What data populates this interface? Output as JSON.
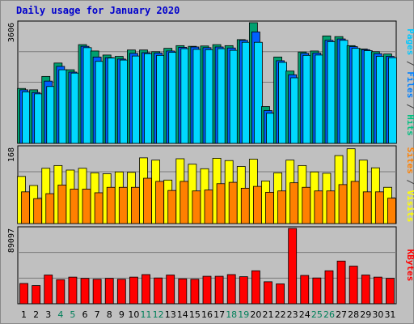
{
  "chart_data": {
    "type": "bar",
    "title": "Daily usage for January 2020",
    "days": [
      "1",
      "2",
      "3",
      "4",
      "5",
      "6",
      "7",
      "8",
      "9",
      "10",
      "11",
      "12",
      "13",
      "14",
      "15",
      "16",
      "17",
      "18",
      "19",
      "20",
      "21",
      "22",
      "23",
      "24",
      "25",
      "26",
      "27",
      "28",
      "29",
      "30",
      "31"
    ],
    "weekend_days": [
      "4",
      "5",
      "11",
      "12",
      "18",
      "19",
      "25",
      "26"
    ],
    "panels": [
      {
        "id": "top",
        "max_label": "3606",
        "max": 3606,
        "label_parts": [
          {
            "text": "Pages",
            "color": "#00c8ff"
          },
          {
            "text": " / ",
            "color": "#404040"
          },
          {
            "text": "Files",
            "color": "#0080ff"
          },
          {
            "text": " / ",
            "color": "#404040"
          },
          {
            "text": "Hits",
            "color": "#00c080"
          }
        ],
        "series": [
          {
            "name": "Hits",
            "color": "#00a070",
            "values": [
              1640,
              1600,
              2000,
              2400,
              2200,
              2950,
              2760,
              2640,
              2600,
              2790,
              2790,
              2740,
              2840,
              2920,
              2900,
              2910,
              2950,
              2920,
              3100,
              3606,
              1100,
              2580,
              2160,
              2730,
              2760,
              3210,
              3190,
              2920,
              2820,
              2740,
              2670
            ]
          },
          {
            "name": "Files",
            "color": "#0060ff",
            "values": [
              1600,
              1520,
              1860,
              2300,
              2130,
              2900,
              2580,
              2560,
              2520,
              2690,
              2710,
              2700,
              2760,
              2870,
              2880,
              2860,
              2880,
              2850,
              3080,
              3330,
              980,
              2470,
              2050,
              2690,
              2700,
              3080,
              3120,
              2890,
              2800,
              2680,
              2600
            ]
          },
          {
            "name": "Pages",
            "color": "#00d8ff",
            "values": [
              1540,
              1480,
              1700,
              2200,
              2100,
              2860,
              2450,
              2550,
              2490,
              2610,
              2680,
              2630,
              2720,
              2830,
              2810,
              2800,
              2830,
              2780,
              3020,
              3020,
              900,
              2420,
              1960,
              2630,
              2640,
              3040,
              3080,
              2840,
              2770,
              2600,
              2560
            ]
          }
        ]
      },
      {
        "id": "mid",
        "max_label": "168",
        "max": 168,
        "label_parts": [
          {
            "text": "Sites",
            "color": "#ff8000"
          },
          {
            "text": " / ",
            "color": "#404040"
          },
          {
            "text": "Visits",
            "color": "#ffff00"
          }
        ],
        "series": [
          {
            "name": "Visits",
            "color": "#ffff00",
            "values": [
              104,
              84,
              122,
              128,
              118,
              122,
              112,
              110,
              114,
              113,
              145,
              140,
              96,
              143,
              131,
              121,
              144,
              139,
              126,
              142,
              94,
              112,
              140,
              128,
              114,
              111,
              150,
              165,
              140,
              123,
              80
            ]
          },
          {
            "name": "Sites",
            "color": "#ff8000",
            "values": [
              70,
              55,
              66,
              85,
              76,
              76,
              68,
              80,
              80,
              80,
              100,
              93,
              73,
              93,
              72,
              74,
              88,
              91,
              78,
              82,
              69,
              72,
              90,
              80,
              72,
              72,
              86,
              93,
              70,
              70,
              56
            ]
          }
        ]
      },
      {
        "id": "bottom",
        "max_label": "89097",
        "max": 89097,
        "label_parts": [
          {
            "text": "KBytes",
            "color": "#ff0000"
          }
        ],
        "series": [
          {
            "name": "KBytes",
            "color": "#ff0000",
            "values": [
              24000,
              21500,
              34000,
              28500,
              31500,
              30000,
              29000,
              30000,
              29000,
              31500,
              34500,
              30500,
              34000,
              29500,
              29000,
              32500,
              32500,
              34500,
              32000,
              39000,
              26000,
              23500,
              89097,
              33500,
              30500,
              39000,
              50500,
              44500,
              34000,
              31500,
              30000
            ]
          }
        ]
      }
    ]
  }
}
